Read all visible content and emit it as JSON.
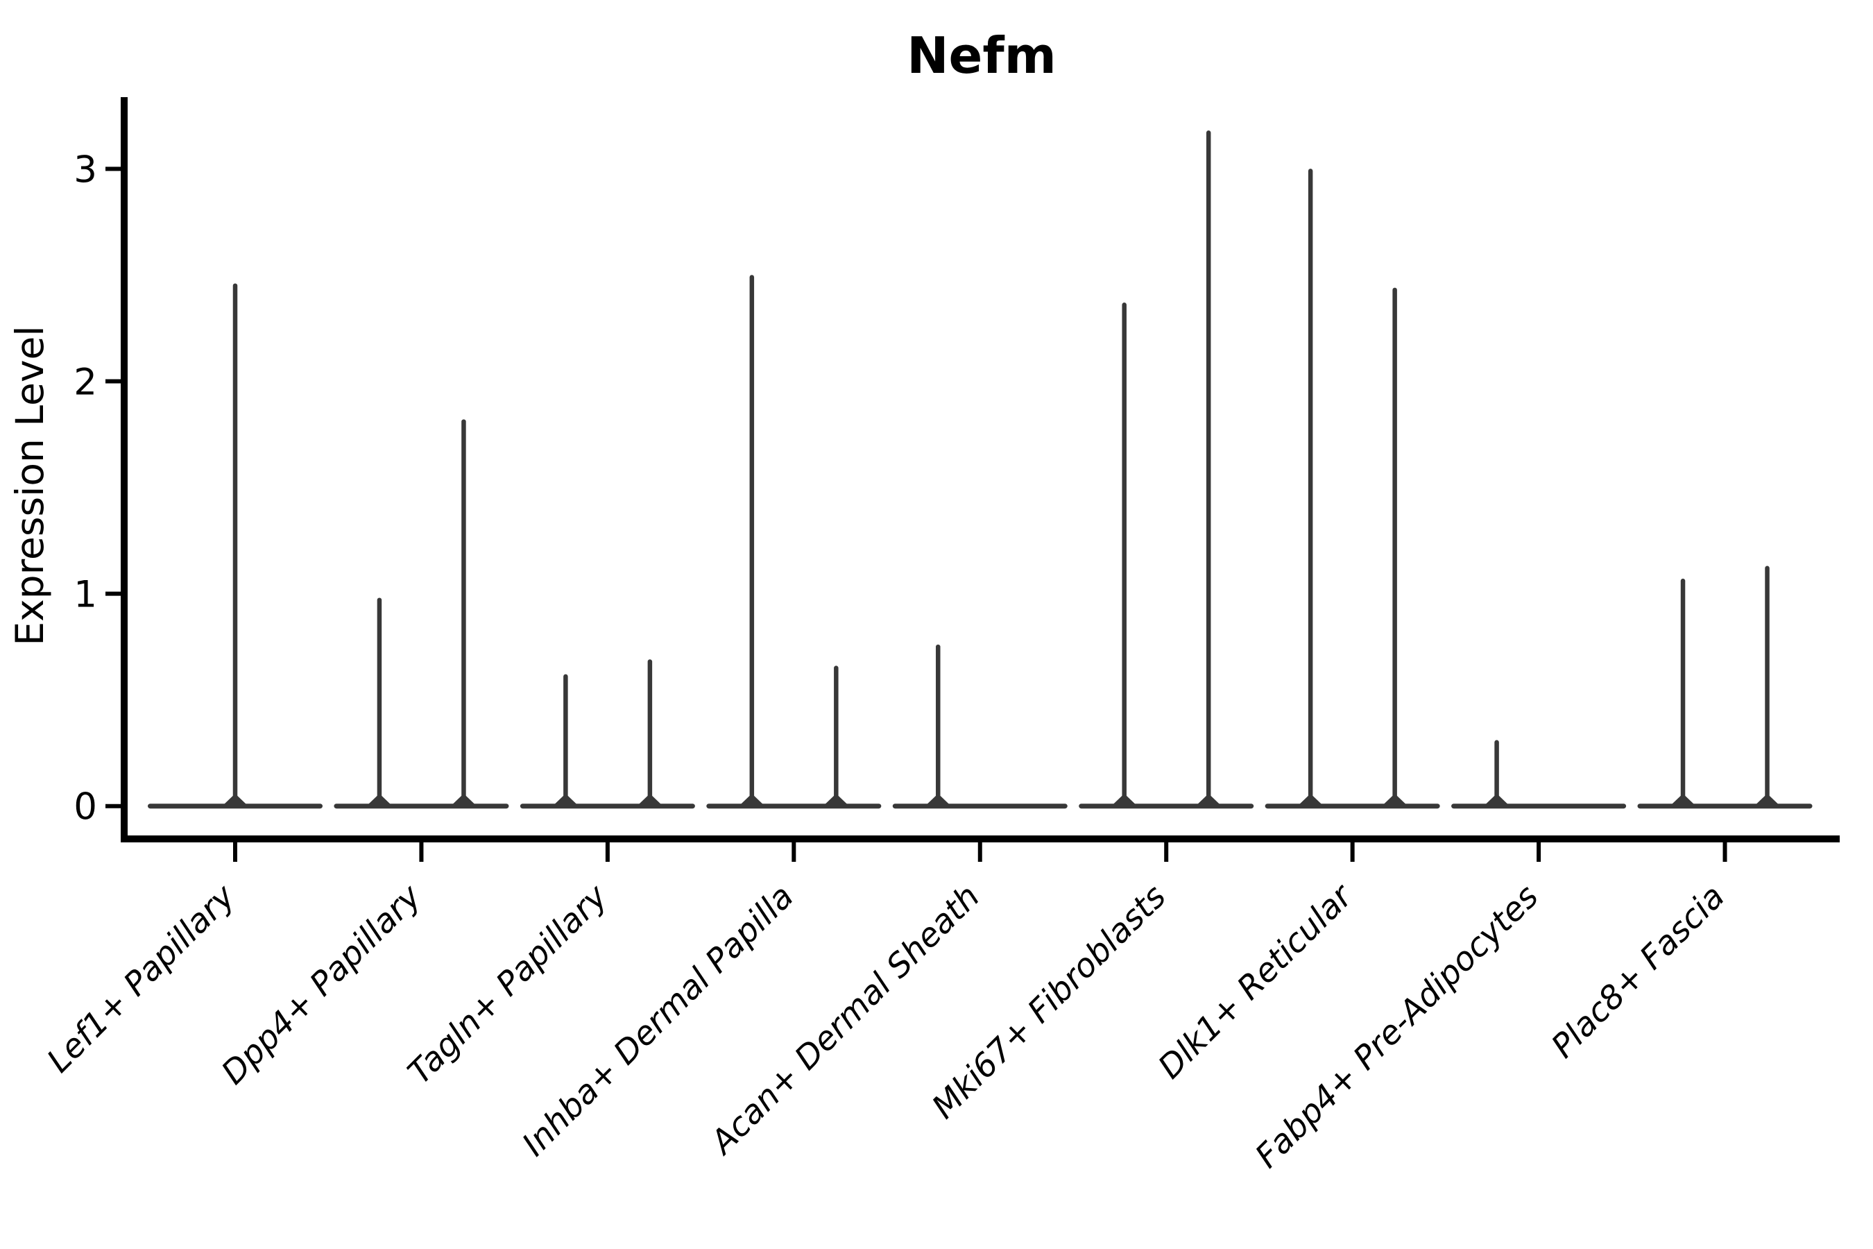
{
  "title": "Nefm",
  "y_axis": {
    "label": "Expression Level",
    "tick_labels": [
      "0",
      "1",
      "2",
      "3"
    ],
    "tick_values": [
      0,
      1,
      2,
      3
    ]
  },
  "chart_data": {
    "type": "violin",
    "title": "Nefm",
    "xlabel": "",
    "ylabel": "Expression Level",
    "ylim": [
      -0.17,
      3.34
    ],
    "yticks": [
      0,
      1,
      2,
      3
    ],
    "grid": false,
    "legend": "none",
    "baseline_value": 0,
    "categories": [
      "Lef1+ Papillary",
      "Dpp4+ Papillary",
      "Tagln+ Papillary",
      "Inhba+ Dermal Papilla",
      "Acan+ Dermal Sheath",
      "Mki67+ Fibroblasts",
      "Dlk1+ Reticular",
      "Fabp4+ Pre-Adipocytes",
      "Plac8+ Fascia"
    ],
    "violins": [
      {
        "category": "Lef1+ Papillary",
        "spikes": [
          {
            "position": "center",
            "max": 2.46
          }
        ]
      },
      {
        "category": "Dpp4+ Papillary",
        "spikes": [
          {
            "position": "left",
            "max": 0.98
          },
          {
            "position": "right",
            "max": 1.82
          }
        ]
      },
      {
        "category": "Tagln+ Papillary",
        "spikes": [
          {
            "position": "left",
            "max": 0.62
          },
          {
            "position": "right",
            "max": 0.69
          }
        ]
      },
      {
        "category": "Inhba+ Dermal Papilla",
        "spikes": [
          {
            "position": "left",
            "max": 2.5
          },
          {
            "position": "right",
            "max": 0.66
          }
        ]
      },
      {
        "category": "Acan+ Dermal Sheath",
        "spikes": [
          {
            "position": "left",
            "max": 0.76
          }
        ]
      },
      {
        "category": "Mki67+ Fibroblasts",
        "spikes": [
          {
            "position": "left",
            "max": 2.37
          },
          {
            "position": "right",
            "max": 3.18
          }
        ]
      },
      {
        "category": "Dlk1+ Reticular",
        "spikes": [
          {
            "position": "left",
            "max": 3.0
          },
          {
            "position": "right",
            "max": 2.44
          }
        ]
      },
      {
        "category": "Fabp4+ Pre-Adipocytes",
        "spikes": [
          {
            "position": "left",
            "max": 0.31
          }
        ]
      },
      {
        "category": "Plac8+ Fascia",
        "spikes": [
          {
            "position": "left",
            "max": 1.07
          },
          {
            "position": "right",
            "max": 1.13
          }
        ]
      }
    ],
    "colors": {
      "violin": "#383838",
      "axis": "#000000",
      "text": "#000000",
      "background": "#ffffff"
    }
  }
}
